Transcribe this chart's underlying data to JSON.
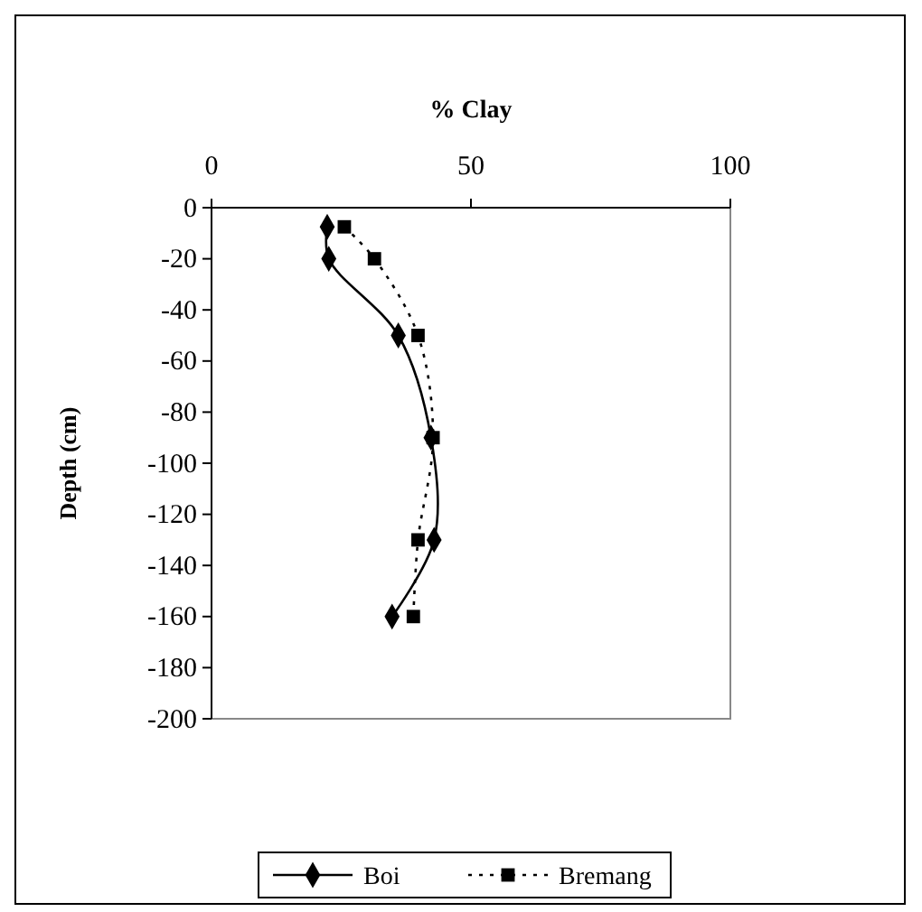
{
  "chart_data": {
    "type": "line",
    "title": "% Clay",
    "ylabel": "Depth (cm)",
    "xlim": [
      0,
      100
    ],
    "xticks": [
      0,
      50,
      100
    ],
    "ylim": [
      -200,
      0
    ],
    "yticks": [
      0,
      -20,
      -40,
      -60,
      -80,
      -100,
      -120,
      -140,
      -160,
      -180,
      -200
    ],
    "grid": false,
    "legend": "bottom",
    "series": [
      {
        "name": "Boi",
        "color": "#000000",
        "marker": "diamond",
        "line_style": "solid",
        "x": [
          22.3,
          22.6,
          36.0,
          42.3,
          42.9,
          34.8
        ],
        "values": [
          -7.5,
          -20,
          -50,
          -90,
          -130,
          -160
        ]
      },
      {
        "name": "Bremang",
        "color": "#000000",
        "marker": "square",
        "line_style": "dotted",
        "x": [
          25.6,
          31.4,
          39.8,
          42.7,
          39.8,
          38.9
        ],
        "values": [
          -7.5,
          -20,
          -50,
          -90,
          -130,
          -160
        ]
      }
    ]
  }
}
